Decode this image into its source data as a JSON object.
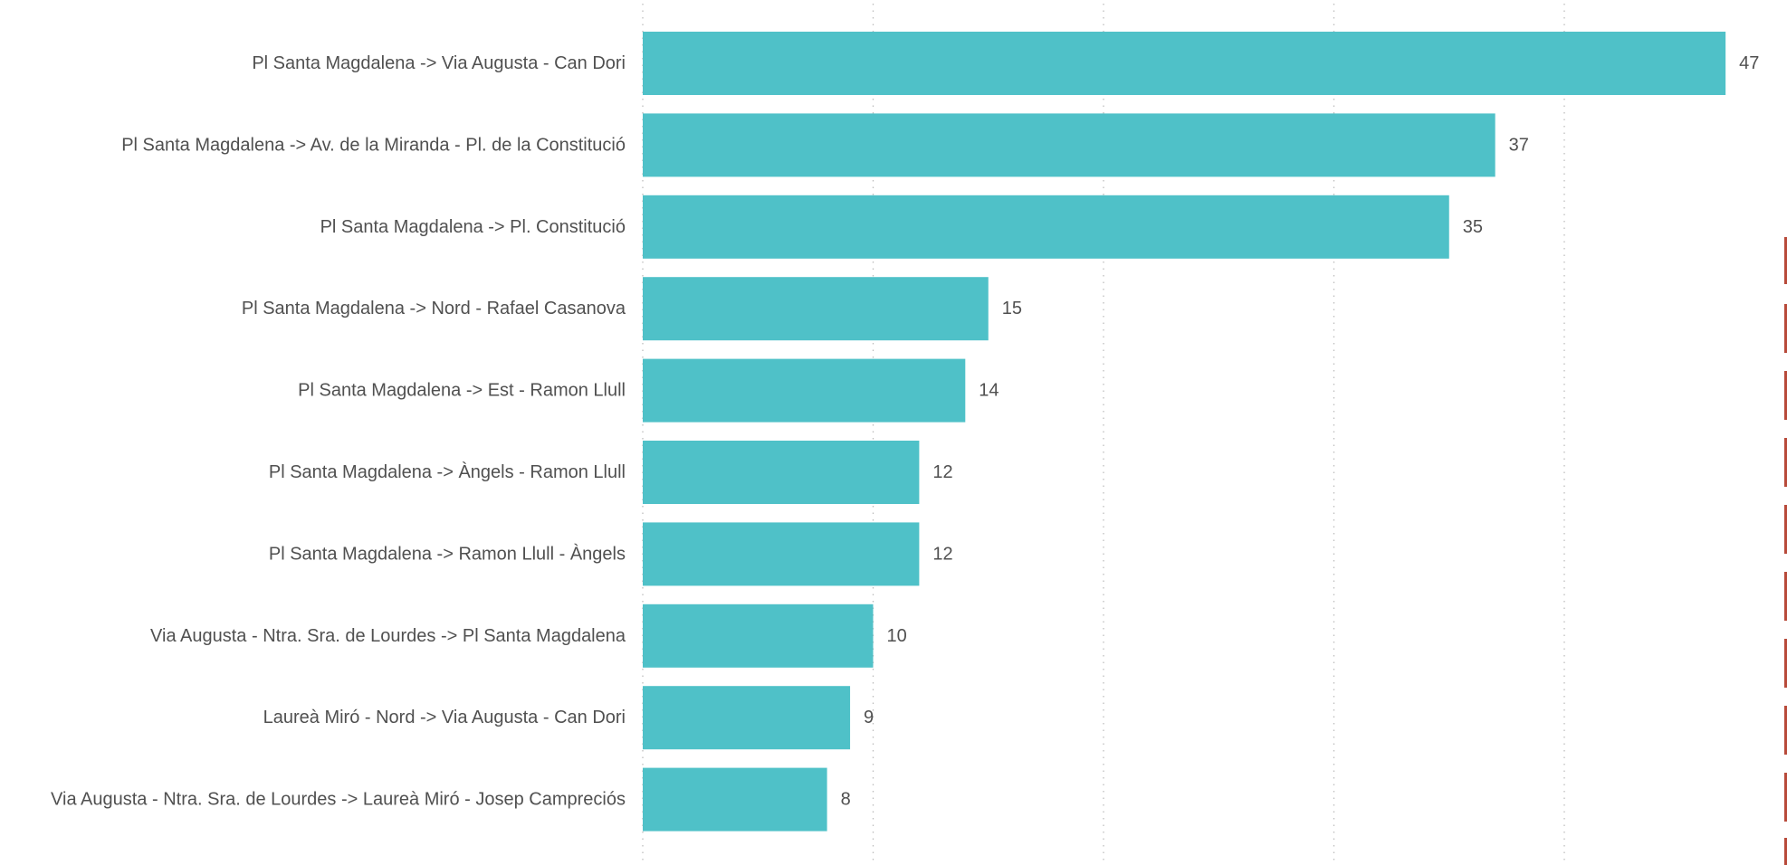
{
  "chart_data": {
    "type": "bar",
    "orientation": "horizontal",
    "categories": [
      "Pl Santa Magdalena -> Via Augusta - Can Dori",
      "Pl Santa Magdalena -> Av. de la Miranda - Pl. de la Constitució",
      "Pl Santa Magdalena -> Pl. Constitució",
      "Pl Santa Magdalena -> Nord - Rafael Casanova",
      "Pl Santa Magdalena -> Est - Ramon Llull",
      "Pl Santa Magdalena -> Àngels - Ramon Llull",
      "Pl Santa Magdalena -> Ramon Llull - Àngels",
      "Via Augusta - Ntra. Sra. de Lourdes -> Pl Santa Magdalena",
      "Laureà Miró - Nord -> Via Augusta - Can Dori",
      "Via Augusta - Ntra. Sra. de Lourdes -> Laureà Miró - Josep Campreciós"
    ],
    "values": [
      47,
      37,
      35,
      15,
      14,
      12,
      12,
      10,
      9,
      8
    ],
    "title": "",
    "xlabel": "",
    "ylabel": "",
    "xlim": [
      0,
      47
    ],
    "grid": true,
    "legend": "none",
    "data_labels": true,
    "bar_color": "#4fc1c8"
  }
}
